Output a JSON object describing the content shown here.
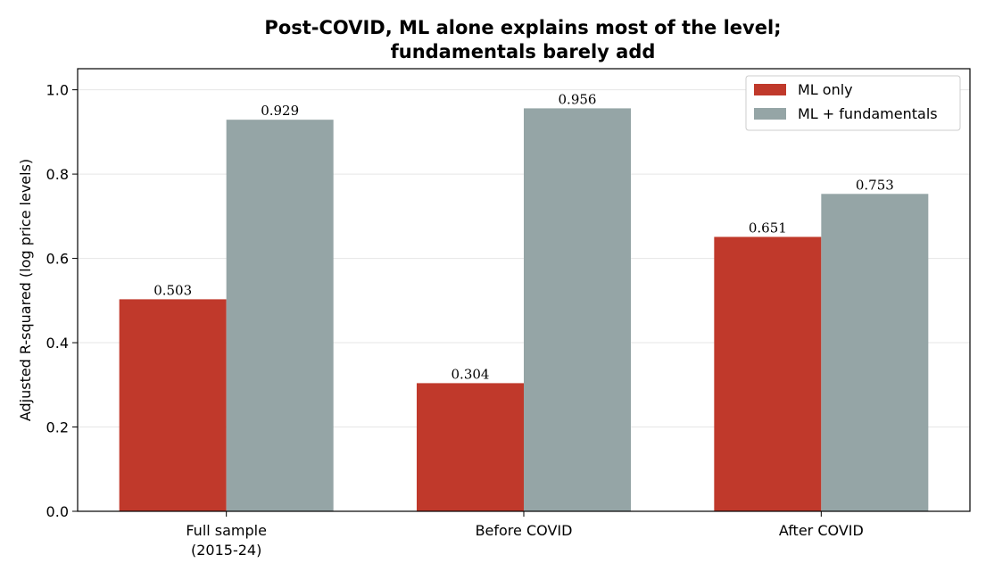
{
  "chart_data": {
    "type": "bar",
    "title_lines": [
      "Post-COVID, ML alone explains most of the level;",
      "fundamentals barely add"
    ],
    "xlabel": "",
    "ylabel": "Adjusted R-squared (log price levels)",
    "categories": [
      [
        "Full sample",
        "(2015-24)"
      ],
      [
        "Before COVID"
      ],
      [
        "After COVID"
      ]
    ],
    "series": [
      {
        "name": "ML only",
        "color": "#c0392b",
        "values": [
          0.503,
          0.304,
          0.651
        ],
        "labels": [
          "0.503",
          "0.304",
          "0.651"
        ]
      },
      {
        "name": "ML + fundamentals",
        "color": "#95a5a6",
        "values": [
          0.929,
          0.956,
          0.753
        ],
        "labels": [
          "0.929",
          "0.956",
          "0.753"
        ]
      }
    ],
    "ylim": [
      0,
      1.05
    ],
    "yticks": [
      0.0,
      0.2,
      0.4,
      0.6,
      0.8,
      1.0
    ],
    "ytick_labels": [
      "0.0",
      "0.2",
      "0.4",
      "0.6",
      "0.8",
      "1.0"
    ],
    "grid": "horizontal",
    "legend_position": "top-right"
  }
}
